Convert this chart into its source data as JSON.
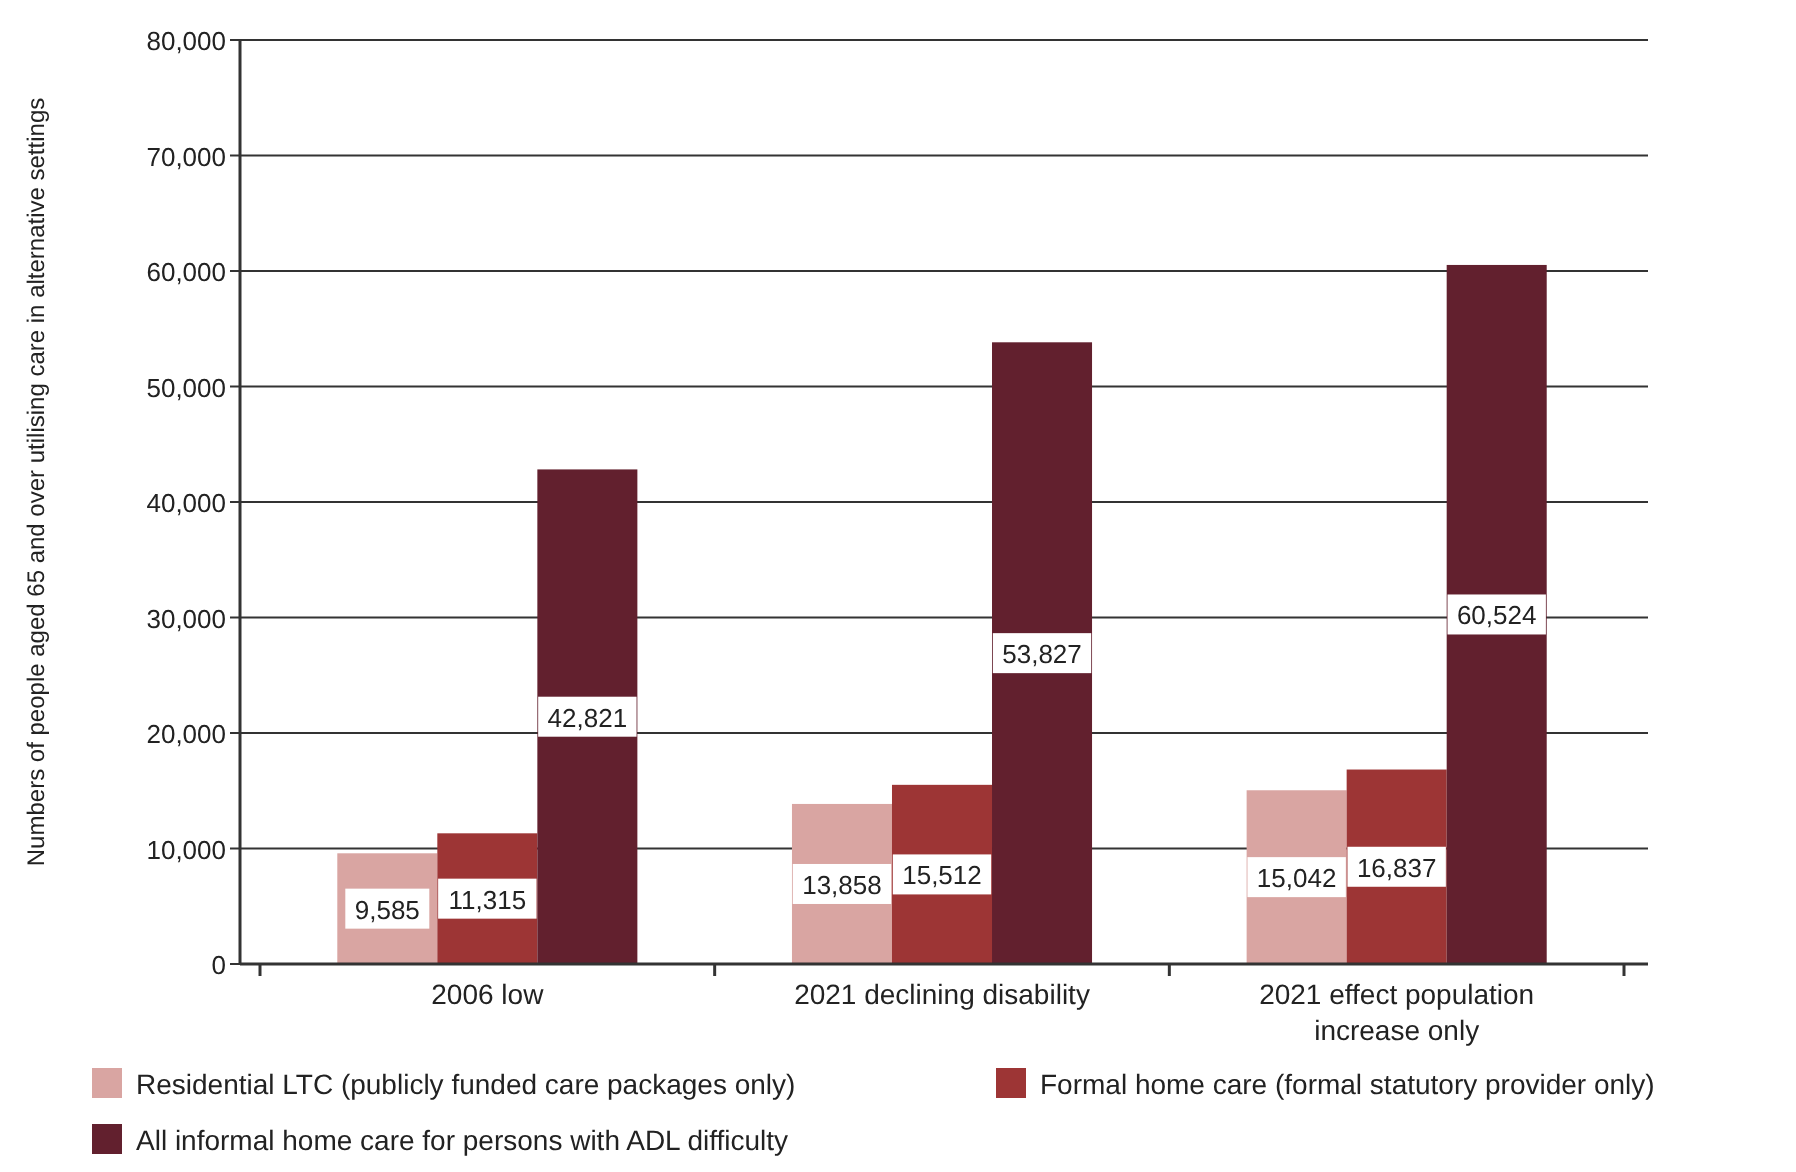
{
  "chart_data": {
    "type": "bar",
    "ylabel": "Numbers of people aged 65 and over utilising care in alternative settings",
    "categories": [
      "2006 low",
      "2021 declining disability",
      "2021 effect population increase only"
    ],
    "series": [
      {
        "name": "Residential LTC (publicly funded care packages only)",
        "color": "#d9a5a2",
        "values": [
          9585,
          13858,
          15042
        ],
        "value_labels": [
          "9,585",
          "13,858",
          "15,042"
        ]
      },
      {
        "name": "Formal home care (formal statutory provider only)",
        "color": "#9d3535",
        "values": [
          11315,
          15512,
          16837
        ],
        "value_labels": [
          "11,315",
          "15,512",
          "16,837"
        ]
      },
      {
        "name": "All informal home care for persons with ADL difficulty",
        "color": "#62202e",
        "values": [
          42821,
          53827,
          60524
        ],
        "value_labels": [
          "42,821",
          "53,827",
          "60,524"
        ]
      }
    ],
    "ylim": [
      0,
      80000
    ],
    "yticks": [
      {
        "value": 0,
        "label": "0"
      },
      {
        "value": 10000,
        "label": "10,000"
      },
      {
        "value": 20000,
        "label": "20,000"
      },
      {
        "value": 30000,
        "label": "30,000"
      },
      {
        "value": 40000,
        "label": "40,000"
      },
      {
        "value": 50000,
        "label": "50,000"
      },
      {
        "value": 60000,
        "label": "60,000"
      },
      {
        "value": 70000,
        "label": "70,000"
      },
      {
        "value": 80000,
        "label": "80,000"
      }
    ],
    "grid": "y",
    "legend": "bottom"
  }
}
